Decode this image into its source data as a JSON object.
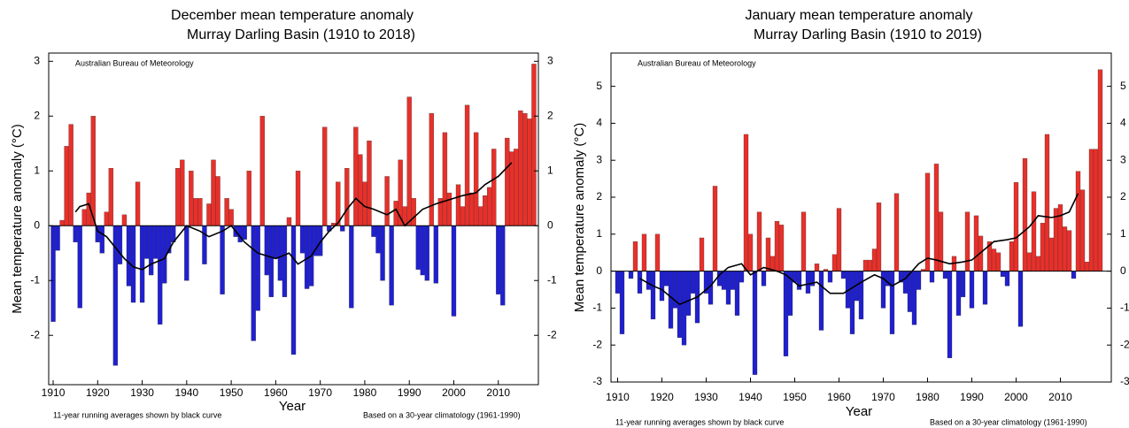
{
  "chart_data": [
    {
      "type": "bar",
      "title": "December mean temperature anomaly",
      "subtitle": "Murray Darling Basin (1910 to 2018)",
      "annotation": "Australian Bureau of Meteorology",
      "xlabel": "Year",
      "ylabel": "Mean temperature anomaly (°C)",
      "footnote_left": "11-year running averages shown by black curve",
      "footnote_right": "Based on a 30-year climatology (1961-1990)",
      "positive_color": "#e8302a",
      "negative_color": "#2020d0",
      "x": [
        1910,
        1911,
        1912,
        1913,
        1914,
        1915,
        1916,
        1917,
        1918,
        1919,
        1920,
        1921,
        1922,
        1923,
        1924,
        1925,
        1926,
        1927,
        1928,
        1929,
        1930,
        1931,
        1932,
        1933,
        1934,
        1935,
        1936,
        1937,
        1938,
        1939,
        1940,
        1941,
        1942,
        1943,
        1944,
        1945,
        1946,
        1947,
        1948,
        1949,
        1950,
        1951,
        1952,
        1953,
        1954,
        1955,
        1956,
        1957,
        1958,
        1959,
        1960,
        1961,
        1962,
        1963,
        1964,
        1965,
        1966,
        1967,
        1968,
        1969,
        1970,
        1971,
        1972,
        1973,
        1974,
        1975,
        1976,
        1977,
        1978,
        1979,
        1980,
        1981,
        1982,
        1983,
        1984,
        1985,
        1986,
        1987,
        1988,
        1989,
        1990,
        1991,
        1992,
        1993,
        1994,
        1995,
        1996,
        1997,
        1998,
        1999,
        2000,
        2001,
        2002,
        2003,
        2004,
        2005,
        2006,
        2007,
        2008,
        2009,
        2010,
        2011,
        2012,
        2013,
        2014,
        2015,
        2016,
        2017,
        2018
      ],
      "values": [
        -1.75,
        -0.45,
        0.1,
        1.45,
        1.85,
        -0.3,
        -1.5,
        0.3,
        0.6,
        2.0,
        -0.3,
        -0.5,
        0.25,
        1.05,
        -2.55,
        -0.7,
        0.2,
        -1.1,
        -1.4,
        0.8,
        -1.4,
        -0.6,
        -0.9,
        -0.6,
        -1.8,
        -1.05,
        -0.5,
        -0.3,
        1.05,
        1.2,
        -1.0,
        1.0,
        0.5,
        0.5,
        -0.7,
        0.4,
        1.2,
        0.9,
        -1.25,
        0.5,
        0.3,
        -0.2,
        -0.3,
        -0.25,
        1.0,
        -2.1,
        -1.55,
        2.0,
        -0.9,
        -1.3,
        -0.6,
        -1.0,
        -1.3,
        0.15,
        -2.35,
        1.0,
        -0.5,
        -1.15,
        -1.1,
        -0.55,
        -0.55,
        1.8,
        -0.1,
        0.05,
        0.8,
        -0.1,
        1.05,
        -1.5,
        1.8,
        1.3,
        0.8,
        1.55,
        -0.2,
        -0.5,
        -1.0,
        0.9,
        -1.45,
        0.45,
        1.2,
        0.35,
        2.35,
        0.5,
        -0.8,
        -0.9,
        -1.0,
        2.05,
        -1.05,
        0.5,
        1.7,
        0.6,
        -1.65,
        0.75,
        0.35,
        2.2,
        0.6,
        1.7,
        0.35,
        0.55,
        0.7,
        1.4,
        -1.25,
        -1.45,
        1.6,
        1.35,
        1.4,
        2.1,
        2.05,
        1.95,
        2.95
      ],
      "running_mean": {
        "color": "#000000",
        "x": [
          1915,
          1916,
          1918,
          1920,
          1922,
          1924,
          1926,
          1928,
          1930,
          1932,
          1935,
          1937,
          1940,
          1943,
          1945,
          1948,
          1950,
          1953,
          1956,
          1960,
          1963,
          1965,
          1968,
          1970,
          1972,
          1974,
          1976,
          1978,
          1980,
          1982,
          1985,
          1987,
          1989,
          1991,
          1993,
          1996,
          2000,
          2002,
          2005,
          2007,
          2010,
          2013
        ],
        "values": [
          0.25,
          0.35,
          0.4,
          -0.1,
          -0.2,
          -0.4,
          -0.6,
          -0.75,
          -0.8,
          -0.7,
          -0.6,
          -0.3,
          0.0,
          -0.1,
          -0.2,
          -0.1,
          0.0,
          -0.3,
          -0.5,
          -0.6,
          -0.5,
          -0.7,
          -0.55,
          -0.3,
          -0.1,
          0.05,
          0.3,
          0.5,
          0.35,
          0.3,
          0.2,
          0.3,
          0.0,
          0.15,
          0.3,
          0.4,
          0.5,
          0.55,
          0.6,
          0.75,
          0.9,
          1.15
        ]
      },
      "xlim": [
        1909,
        2019
      ],
      "xticks": [
        1910,
        1920,
        1930,
        1940,
        1950,
        1960,
        1970,
        1980,
        1990,
        2000,
        2010
      ],
      "ylim": [
        -2.9,
        3.15
      ],
      "yticks": [
        -2,
        -1,
        0,
        1,
        2,
        3
      ]
    },
    {
      "type": "bar",
      "title": "January mean temperature anomaly",
      "subtitle": "Murray Darling Basin (1910 to 2019)",
      "annotation": "Australian Bureau of Meteorology",
      "xlabel": "Year",
      "ylabel": "Mean temperature anomaly (°C)",
      "footnote_left": "11-year running averages shown by black curve",
      "footnote_right": "Based on a 30-year climatology (1961-1990)",
      "positive_color": "#e8302a",
      "negative_color": "#2020d0",
      "x": [
        1910,
        1911,
        1912,
        1913,
        1914,
        1915,
        1916,
        1917,
        1918,
        1919,
        1920,
        1921,
        1922,
        1923,
        1924,
        1925,
        1926,
        1927,
        1928,
        1929,
        1930,
        1931,
        1932,
        1933,
        1934,
        1935,
        1936,
        1937,
        1938,
        1939,
        1940,
        1941,
        1942,
        1943,
        1944,
        1945,
        1946,
        1947,
        1948,
        1949,
        1950,
        1951,
        1952,
        1953,
        1954,
        1955,
        1956,
        1957,
        1958,
        1959,
        1960,
        1961,
        1962,
        1963,
        1964,
        1965,
        1966,
        1967,
        1968,
        1969,
        1970,
        1971,
        1972,
        1973,
        1974,
        1975,
        1976,
        1977,
        1978,
        1979,
        1980,
        1981,
        1982,
        1983,
        1984,
        1985,
        1986,
        1987,
        1988,
        1989,
        1990,
        1991,
        1992,
        1993,
        1994,
        1995,
        1996,
        1997,
        1998,
        1999,
        2000,
        2001,
        2002,
        2003,
        2004,
        2005,
        2006,
        2007,
        2008,
        2009,
        2010,
        2011,
        2012,
        2013,
        2014,
        2015,
        2016,
        2017,
        2018,
        2019
      ],
      "values": [
        -0.6,
        -1.7,
        0.0,
        -0.2,
        0.8,
        -0.6,
        1.0,
        -0.5,
        -1.3,
        1.0,
        -0.8,
        -0.4,
        -1.55,
        -1.0,
        -1.8,
        -2.0,
        -1.2,
        -0.6,
        -1.4,
        0.9,
        -0.6,
        -0.9,
        2.3,
        -0.4,
        -0.5,
        -0.9,
        -0.5,
        -1.2,
        -0.3,
        3.7,
        1.0,
        -2.8,
        1.6,
        -0.4,
        0.9,
        0.4,
        1.35,
        1.25,
        -2.3,
        -1.2,
        -0.3,
        -0.5,
        1.6,
        -0.6,
        -0.4,
        0.2,
        -1.6,
        0.05,
        -0.3,
        0.45,
        1.7,
        -0.2,
        -1.0,
        -1.7,
        -0.8,
        -1.3,
        0.3,
        0.3,
        0.6,
        1.85,
        -1.0,
        -0.4,
        -1.7,
        2.1,
        -0.3,
        -0.6,
        -1.1,
        -1.45,
        -0.5,
        0.05,
        2.65,
        -0.3,
        2.9,
        1.6,
        -0.2,
        -2.35,
        0.4,
        -1.2,
        -0.7,
        1.6,
        -1.0,
        1.5,
        0.95,
        -0.9,
        0.8,
        0.6,
        0.5,
        -0.15,
        -0.4,
        0.8,
        2.4,
        -1.5,
        3.05,
        0.5,
        2.15,
        0.4,
        1.3,
        3.7,
        0.9,
        1.7,
        1.8,
        1.2,
        1.1,
        -0.2,
        2.7,
        2.2,
        0.25,
        3.3,
        3.3,
        5.45
      ],
      "running_mean": {
        "color": "#000000",
        "x": [
          1915,
          1918,
          1920,
          1922,
          1924,
          1926,
          1928,
          1931,
          1933,
          1935,
          1938,
          1940,
          1943,
          1946,
          1948,
          1951,
          1953,
          1955,
          1958,
          1961,
          1963,
          1965,
          1968,
          1970,
          1972,
          1975,
          1978,
          1980,
          1982,
          1985,
          1988,
          1990,
          1993,
          1995,
          1998,
          2000,
          2003,
          2005,
          2008,
          2010,
          2012,
          2014
        ],
        "values": [
          -0.2,
          -0.4,
          -0.5,
          -0.7,
          -0.9,
          -0.8,
          -0.7,
          -0.4,
          -0.1,
          0.1,
          0.2,
          -0.1,
          0.1,
          0.0,
          -0.1,
          -0.4,
          -0.35,
          -0.3,
          -0.6,
          -0.6,
          -0.45,
          -0.3,
          -0.1,
          -0.2,
          -0.4,
          -0.2,
          0.2,
          0.35,
          0.3,
          0.2,
          0.25,
          0.3,
          0.6,
          0.8,
          0.85,
          0.9,
          1.2,
          1.5,
          1.45,
          1.5,
          1.6,
          2.1
        ]
      },
      "xlim": [
        1908.5,
        2021.5
      ],
      "xticks": [
        1910,
        1920,
        1930,
        1940,
        1950,
        1960,
        1970,
        1980,
        1990,
        2000,
        2010
      ],
      "ylim": [
        -3,
        5.9
      ],
      "yticks": [
        -3,
        -2,
        -1,
        0,
        1,
        2,
        3,
        4,
        5
      ]
    }
  ]
}
